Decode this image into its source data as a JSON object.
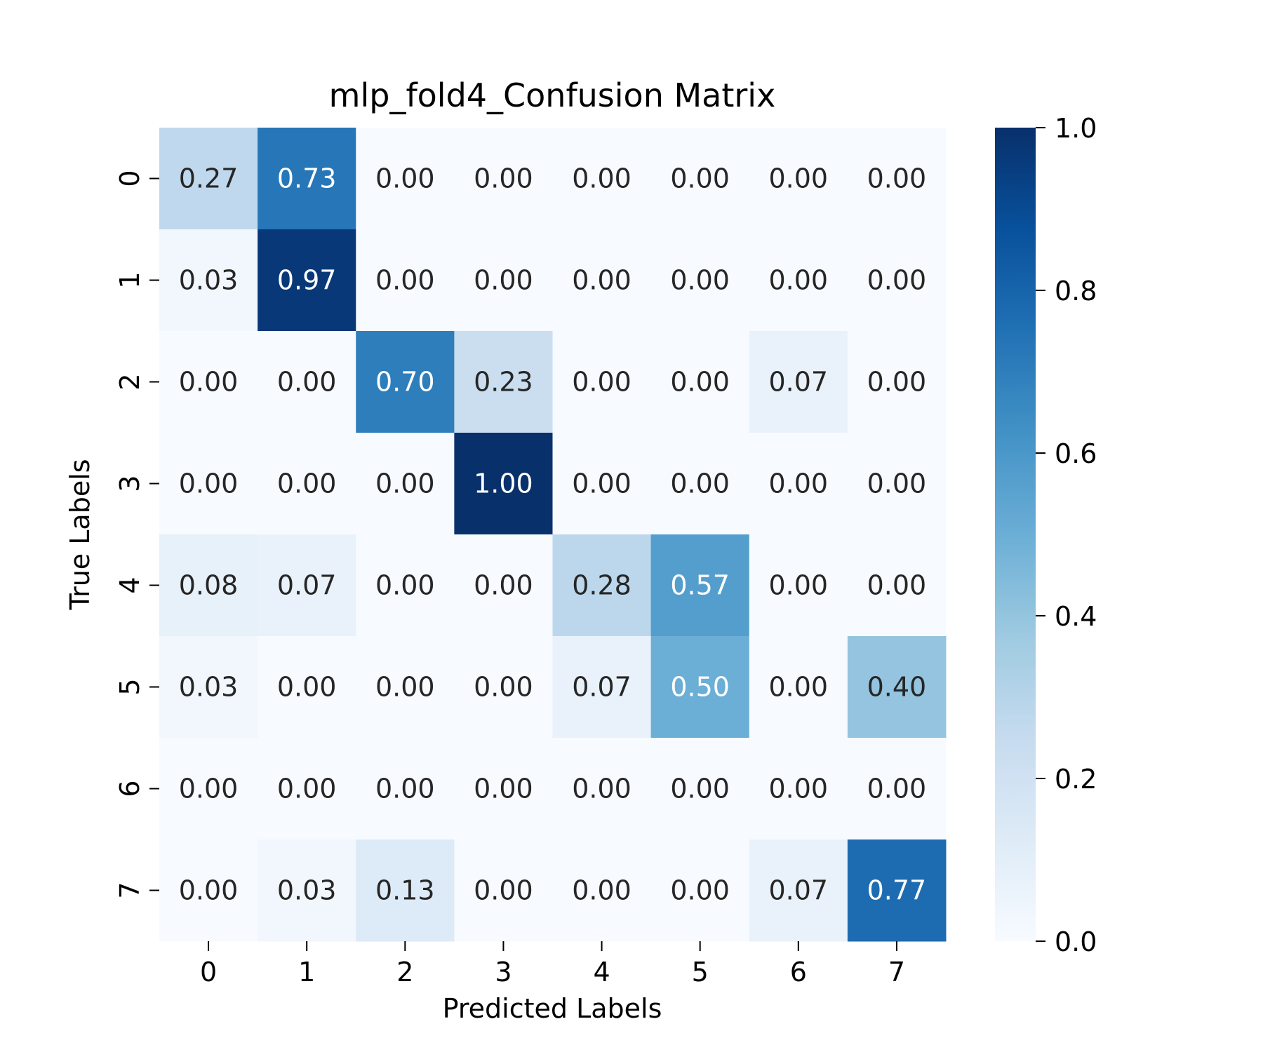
{
  "chart_data": {
    "type": "heatmap",
    "title": "mlp_fold4_Confusion Matrix",
    "xlabel": "Predicted Labels",
    "ylabel": "True Labels",
    "x_categories": [
      "0",
      "1",
      "2",
      "3",
      "4",
      "5",
      "6",
      "7"
    ],
    "y_categories": [
      "0",
      "1",
      "2",
      "3",
      "4",
      "5",
      "6",
      "7"
    ],
    "values": [
      [
        0.27,
        0.73,
        0.0,
        0.0,
        0.0,
        0.0,
        0.0,
        0.0
      ],
      [
        0.03,
        0.97,
        0.0,
        0.0,
        0.0,
        0.0,
        0.0,
        0.0
      ],
      [
        0.0,
        0.0,
        0.7,
        0.23,
        0.0,
        0.0,
        0.07,
        0.0
      ],
      [
        0.0,
        0.0,
        0.0,
        1.0,
        0.0,
        0.0,
        0.0,
        0.0
      ],
      [
        0.08,
        0.07,
        0.0,
        0.0,
        0.28,
        0.57,
        0.0,
        0.0
      ],
      [
        0.03,
        0.0,
        0.0,
        0.0,
        0.07,
        0.5,
        0.0,
        0.4
      ],
      [
        0.0,
        0.0,
        0.0,
        0.0,
        0.0,
        0.0,
        0.0,
        0.0
      ],
      [
        0.0,
        0.03,
        0.13,
        0.0,
        0.0,
        0.0,
        0.07,
        0.77
      ]
    ],
    "colormap": "Blues",
    "colorbar": {
      "range": [
        0.0,
        1.0
      ],
      "ticks": [
        "0.0",
        "0.2",
        "0.4",
        "0.6",
        "0.8",
        "1.0"
      ]
    },
    "value_format": "2 decimals"
  }
}
